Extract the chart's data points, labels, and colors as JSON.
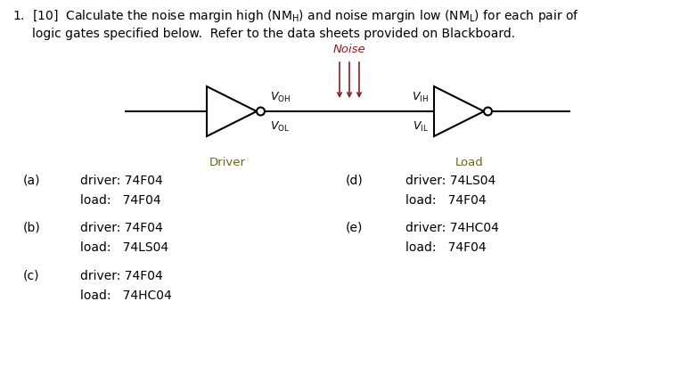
{
  "noise_label": "Noise",
  "noise_color": "#8B2020",
  "driver_label": "Driver",
  "driver_color": "#6B6B00",
  "load_label": "Load",
  "load_color": "#6B6B00",
  "pairs_left": [
    {
      "label": "(a)",
      "driver": "driver: 74F04",
      "load": "load:   74F04"
    },
    {
      "label": "(b)",
      "driver": "driver: 74F04",
      "load": "load:   74LS04"
    },
    {
      "label": "(c)",
      "driver": "driver: 74F04",
      "load": "load:   74HC04"
    }
  ],
  "pairs_right": [
    {
      "label": "(d)",
      "driver": "driver: 74LS04",
      "load": "load:   74F04"
    },
    {
      "label": "(e)",
      "driver": "driver: 74HC04",
      "load": "load:   74F04"
    }
  ],
  "bg_color": "#ffffff",
  "text_color": "#000000",
  "gate_color": "#000000",
  "wire_color": "#000000",
  "fig_width": 7.72,
  "fig_height": 4.31,
  "dpi": 100
}
